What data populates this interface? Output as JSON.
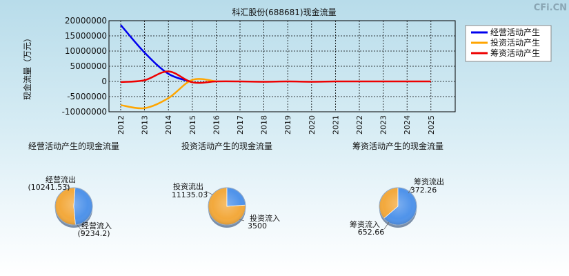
{
  "watermark": "CFi.CN",
  "chart_data": [
    {
      "type": "line",
      "title": "科汇股份(688681)现金流量",
      "ylabel": "现金流量（万元）",
      "xlabel": "",
      "ylim": [
        -10000000,
        20000000
      ],
      "yticks": [
        20000000,
        15000000,
        10000000,
        5000000,
        0,
        -5000000,
        -10000000
      ],
      "ytick_labels": [
        "20000000",
        "15000000",
        "10000000",
        "5000000",
        "0",
        "-5000000",
        "-10000000"
      ],
      "x": [
        "2012",
        "2013",
        "2014",
        "2015",
        "2016",
        "2017",
        "2018",
        "2019",
        "2020",
        "2021",
        "2022",
        "2023",
        "2024",
        "2025"
      ],
      "grid": true,
      "legend_position": "top-right",
      "series": [
        {
          "name": "经营活动产生",
          "color": "#0000ee",
          "values": [
            18600000,
            9500000,
            2500000,
            -200000,
            null,
            null,
            null,
            null,
            null,
            null,
            null,
            null,
            null,
            null
          ]
        },
        {
          "name": "投资活动产生",
          "color": "#ffa500",
          "values": [
            -7800000,
            -8800000,
            -5500000,
            500000,
            0,
            null,
            null,
            null,
            null,
            null,
            null,
            null,
            null,
            null
          ]
        },
        {
          "name": "筹资活动产生",
          "color": "#ee0000",
          "values": [
            -200000,
            400000,
            3300000,
            -300000,
            0,
            0,
            -100000,
            0,
            -100000,
            0,
            0,
            0,
            0,
            0
          ]
        }
      ]
    },
    {
      "type": "pie",
      "title": "经营活动产生的现金流量",
      "slices": [
        {
          "label": "经营流出",
          "value_label": "(10241.53)",
          "value": 10241.53,
          "color": "#f3a93c"
        },
        {
          "label": "经营流入",
          "value_label": "(9234.2)",
          "value": 9234.2,
          "color": "#4f93ea"
        }
      ]
    },
    {
      "type": "pie",
      "title": "投资活动产生的现金流量",
      "slices": [
        {
          "label": "投资流出",
          "value_label": "11135.03",
          "value": 11135.03,
          "color": "#f3a93c"
        },
        {
          "label": "投资流入",
          "value_label": "3500",
          "value": 3500,
          "color": "#4f93ea"
        }
      ]
    },
    {
      "type": "pie",
      "title": "筹资活动产生的现金流量",
      "slices": [
        {
          "label": "筹资流出",
          "value_label": "372.26",
          "value": 372.26,
          "color": "#f3a93c"
        },
        {
          "label": "筹资流入",
          "value_label": "652.66",
          "value": 652.66,
          "color": "#4f93ea"
        }
      ]
    }
  ]
}
